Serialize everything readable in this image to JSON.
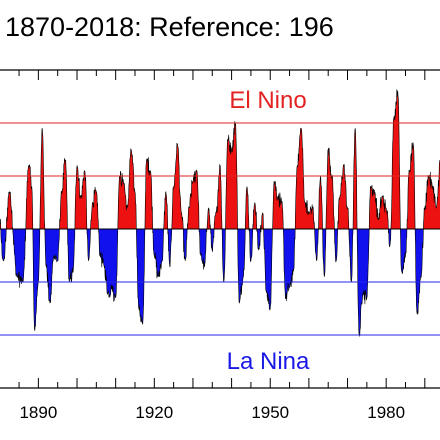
{
  "title": ": 1870-2018: Reference: 196",
  "chart_data": {
    "type": "area",
    "title": ": 1870-2018: Reference: 196",
    "xlabel": "",
    "ylabel": "",
    "xlim": [
      1878,
      1996
    ],
    "ylim": [
      -3,
      3
    ],
    "x_ticks": [
      1890,
      1920,
      1950,
      1980
    ],
    "x_tick_labels": [
      "1890",
      "1920",
      "1950",
      "1980"
    ],
    "reference_lines": [
      {
        "y": 2,
        "color": "#e32222"
      },
      {
        "y": 1,
        "color": "#e32222"
      },
      {
        "y": -1,
        "color": "#2626e6"
      },
      {
        "y": -2,
        "color": "#2626e6"
      }
    ],
    "fill_colors": {
      "positive": "#ee1111",
      "negative": "#1111ee"
    },
    "annotations": [
      {
        "text": "El Nino",
        "color": "#e32222"
      },
      {
        "text": "La Nina",
        "color": "#1a1ae6"
      }
    ],
    "peaks": {
      "x": [
        1878.0,
        1879.5,
        1881.0,
        1882.5,
        1884.5,
        1886.0,
        1887.5,
        1888.3,
        1889.0,
        1890.0,
        1891.0,
        1892.0,
        1893.0,
        1894.0,
        1895.0,
        1896.0,
        1897.0,
        1898.0,
        1899.0,
        1900.0,
        1901.0,
        1902.0,
        1903.0,
        1904.0,
        1905.0,
        1906.0,
        1907.0,
        1908.0,
        1909.0,
        1910.0,
        1911.0,
        1912.0,
        1913.0,
        1914.0,
        1915.0,
        1916.0,
        1917.0,
        1918.0,
        1919.0,
        1920.0,
        1921.0,
        1922.0,
        1923.0,
        1924.0,
        1925.0,
        1926.0,
        1927.0,
        1928.0,
        1929.0,
        1930.0,
        1931.0,
        1932.0,
        1933.0,
        1934.0,
        1935.0,
        1936.0,
        1937.0,
        1938.0,
        1939.0,
        1940.0,
        1941.0,
        1942.0,
        1943.0,
        1944.0,
        1945.0,
        1946.0,
        1947.0,
        1948.0,
        1949.0,
        1950.0,
        1951.0,
        1952.0,
        1953.0,
        1954.0,
        1955.0,
        1956.0,
        1957.0,
        1958.0,
        1959.0,
        1960.0,
        1961.0,
        1962.0,
        1963.0,
        1964.0,
        1965.0,
        1966.0,
        1967.0,
        1968.0,
        1969.0,
        1970.0,
        1971.0,
        1972.0,
        1973.0,
        1974.0,
        1975.0,
        1976.0,
        1977.0,
        1978.0,
        1979.0,
        1980.0,
        1981.0,
        1982.0,
        1983.0,
        1984.0,
        1985.0,
        1986.0,
        1987.0,
        1988.0,
        1989.0,
        1990.0,
        1991.0,
        1992.0,
        1993.0,
        1994.0,
        1995.0,
        1996.0
      ],
      "y": [
        1.0,
        0.5,
        -0.6,
        0.7,
        -0.9,
        -1.0,
        1.2,
        0.8,
        -1.9,
        -1.0,
        1.9,
        -0.7,
        -1.4,
        -0.5,
        -0.6,
        0.7,
        1.3,
        -1.0,
        -0.8,
        1.2,
        0.6,
        1.1,
        -0.6,
        0.5,
        0.7,
        -0.5,
        -0.7,
        -1.2,
        -1.1,
        -1.3,
        1.0,
        0.9,
        0.4,
        1.5,
        0.7,
        -1.5,
        -1.8,
        1.3,
        1.1,
        -0.5,
        -0.9,
        -0.6,
        0.7,
        -0.7,
        0.8,
        1.6,
        0.3,
        -0.6,
        0.4,
        0.9,
        1.1,
        -0.5,
        -0.7,
        0.4,
        -0.4,
        0.3,
        1.2,
        -1.0,
        1.7,
        1.5,
        2.0,
        -1.4,
        -0.9,
        0.8,
        -0.6,
        0.5,
        -0.4,
        0.3,
        -1.2,
        -1.5,
        0.9,
        0.6,
        0.5,
        -1.3,
        -1.1,
        -0.8,
        1.2,
        1.9,
        0.5,
        0.3,
        0.4,
        -0.6,
        1.0,
        -0.9,
        1.5,
        1.0,
        -0.6,
        0.6,
        1.2,
        0.4,
        -1.0,
        1.9,
        -2.0,
        -1.2,
        -1.3,
        0.8,
        0.7,
        0.2,
        0.6,
        0.4,
        -0.3,
        2.1,
        2.6,
        -0.8,
        -0.5,
        1.1,
        1.6,
        -1.6,
        -0.9,
        0.4,
        1.0,
        0.8,
        0.4,
        1.3,
        -0.5,
        0.6
      ]
    }
  }
}
